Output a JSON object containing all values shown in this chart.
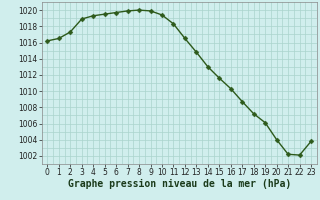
{
  "x": [
    0,
    1,
    2,
    3,
    4,
    5,
    6,
    7,
    8,
    9,
    10,
    11,
    12,
    13,
    14,
    15,
    16,
    17,
    18,
    19,
    20,
    21,
    22,
    23
  ],
  "y": [
    1016.2,
    1016.5,
    1017.3,
    1018.9,
    1019.3,
    1019.5,
    1019.7,
    1019.9,
    1020.0,
    1019.9,
    1019.4,
    1018.3,
    1016.5,
    1014.8,
    1013.0,
    1011.6,
    1010.3,
    1008.7,
    1007.2,
    1006.1,
    1004.0,
    1002.2,
    1002.1,
    1003.8
  ],
  "line_color": "#2d5a1b",
  "marker_color": "#2d5a1b",
  "bg_color": "#d0eeed",
  "grid_color": "#aad4cc",
  "xlabel": "Graphe pression niveau de la mer (hPa)",
  "ylim": [
    1001,
    1021
  ],
  "xlim": [
    -0.5,
    23.5
  ],
  "yticks": [
    1002,
    1004,
    1006,
    1008,
    1010,
    1012,
    1014,
    1016,
    1018,
    1020
  ],
  "xticks": [
    0,
    1,
    2,
    3,
    4,
    5,
    6,
    7,
    8,
    9,
    10,
    11,
    12,
    13,
    14,
    15,
    16,
    17,
    18,
    19,
    20,
    21,
    22,
    23
  ],
  "tick_label_fontsize": 5.5,
  "xlabel_fontsize": 7.0,
  "marker_size": 2.5,
  "line_width": 1.0
}
